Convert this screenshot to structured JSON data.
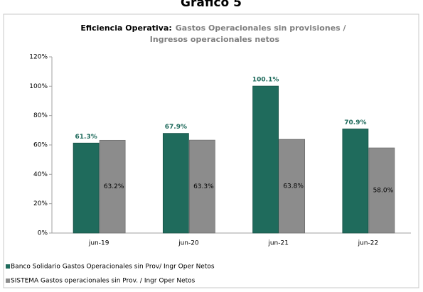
{
  "heading": "Gráfico 5",
  "chart_data": {
    "type": "bar",
    "title": "Eficiencia Operativa:",
    "subtitle": "Gastos Operacionales sin provisiones / Ingresos operacionales netos",
    "categories": [
      "jun-19",
      "jun-20",
      "jun-21",
      "jun-22"
    ],
    "series": [
      {
        "name": "Banco Solidario Gastos Operacionales sin Prov/ Ingr Oper Netos",
        "color": "#1f6b5c",
        "values": [
          61.3,
          67.9,
          100.1,
          70.9
        ],
        "value_labels": [
          "61.3%",
          "67.9%",
          "100.1%",
          "70.9%"
        ]
      },
      {
        "name": "SISTEMA Gastos operacionales sin Prov. / Ingr Oper Netos",
        "color": "#8c8c8c",
        "values": [
          63.2,
          63.3,
          63.8,
          58
        ],
        "value_labels": [
          "63.2%",
          "63.3%",
          "63.8%",
          "58.0%"
        ]
      }
    ],
    "ylim": [
      0,
      120
    ],
    "yticks": [
      {
        "value": 0,
        "label": "0%"
      },
      {
        "value": 20,
        "label": "20%"
      },
      {
        "value": 40,
        "label": "40%"
      },
      {
        "value": 60,
        "label": "60%"
      },
      {
        "value": 80,
        "label": "80%"
      },
      {
        "value": 100,
        "label": "100%"
      },
      {
        "value": 120,
        "label": "120%"
      }
    ],
    "grid": false,
    "legend": "bottom-left"
  }
}
